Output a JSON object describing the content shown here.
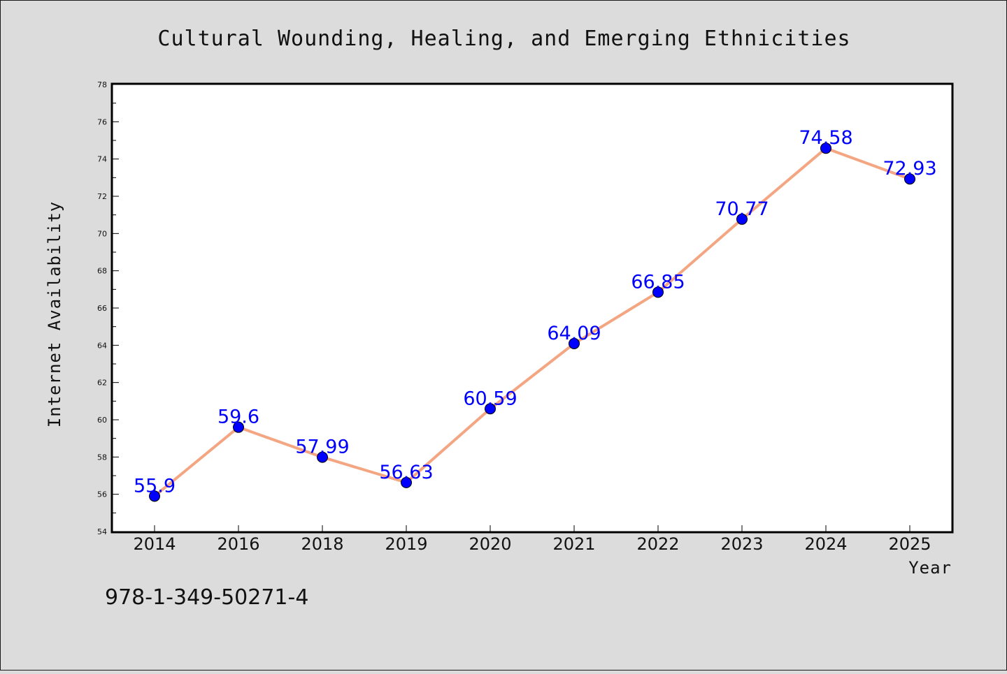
{
  "chart_data": {
    "type": "line",
    "title": "Cultural Wounding, Healing, and Emerging Ethnicities",
    "xlabel": "Year",
    "ylabel": "Internet Availability",
    "categories": [
      "2014",
      "2016",
      "2018",
      "2019",
      "2020",
      "2021",
      "2022",
      "2023",
      "2024",
      "2025"
    ],
    "series": [
      {
        "values": [
          55.9,
          59.6,
          57.99,
          56.63,
          60.59,
          64.09,
          66.85,
          70.77,
          74.58,
          72.93
        ],
        "labels": [
          "55.9",
          "59.6",
          "57.99",
          "56.63",
          "60.59",
          "64.09",
          "66.85",
          "70.77",
          "74.58",
          "72.93"
        ],
        "line_color": "#f4a582",
        "marker_color": "#0000ff"
      }
    ],
    "ylim": [
      54,
      78
    ],
    "yticks": [
      "54",
      "56",
      "58",
      "60",
      "62",
      "64",
      "66",
      "68",
      "70",
      "72",
      "74",
      "76",
      "78"
    ],
    "grid": false,
    "legend": "none"
  },
  "footer": {
    "isbn": "978-1-349-50271-4"
  }
}
